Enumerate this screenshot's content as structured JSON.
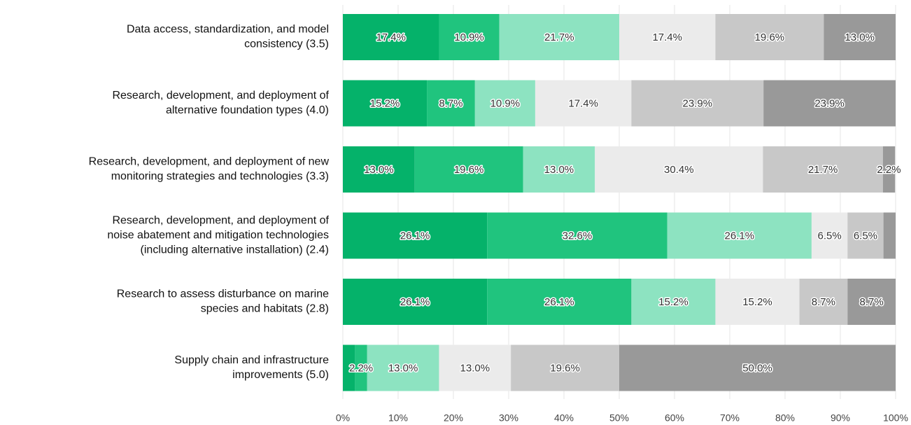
{
  "chart_data": {
    "type": "stacked_barh",
    "categories": [
      [
        "Data access, standardization, and model",
        "consistency (3.5)"
      ],
      [
        "Research, development, and deployment of",
        "alternative foundation types (4.0)"
      ],
      [
        "Research, development, and deployment of new",
        "monitoring strategies and technologies (3.3)"
      ],
      [
        "Research, development, and deployment of",
        "noise abatement and mitigation technologies",
        "(including alternative installation) (2.4)"
      ],
      [
        "Research to assess disturbance on marine",
        "species and habitats (2.8)"
      ],
      [
        "Supply chain and infrastructure",
        "improvements (5.0)"
      ]
    ],
    "series": [
      {
        "color": "#05b26a",
        "values": [
          17.4,
          15.2,
          13.0,
          26.1,
          26.1,
          2.2
        ],
        "value_labels": [
          "17.4%",
          "15.2%",
          "13.0%",
          "26.1%",
          "26.1%",
          null
        ]
      },
      {
        "color": "#20c47e",
        "values": [
          10.9,
          8.7,
          19.6,
          32.6,
          26.1,
          2.2
        ],
        "value_labels": [
          "10.9%",
          "8.7%",
          "19.6%",
          "32.6%",
          "26.1%",
          "2.2%"
        ]
      },
      {
        "color": "#8de3c1",
        "values": [
          21.7,
          10.9,
          13.0,
          26.1,
          15.2,
          13.0
        ],
        "value_labels": [
          "21.7%",
          "10.9%",
          "13.0%",
          "26.1%",
          "15.2%",
          "13.0%"
        ]
      },
      {
        "color": "#ebebeb",
        "values": [
          17.4,
          17.4,
          30.4,
          6.5,
          15.2,
          13.0
        ],
        "value_labels": [
          "17.4%",
          "17.4%",
          "30.4%",
          "6.5%",
          "15.2%",
          "13.0%"
        ]
      },
      {
        "color": "#c8c8c8",
        "values": [
          19.6,
          23.9,
          21.7,
          6.5,
          8.7,
          19.6
        ],
        "value_labels": [
          "19.6%",
          "23.9%",
          "21.7%",
          "6.5%",
          "8.7%",
          "19.6%"
        ]
      },
      {
        "color": "#999999",
        "values": [
          13.0,
          23.9,
          2.2,
          2.2,
          8.7,
          50.0
        ],
        "value_labels": [
          "13.0%",
          "23.9%",
          "2.2%",
          null,
          "8.7%",
          "50.0%"
        ]
      }
    ],
    "xlim": [
      0,
      100
    ],
    "xticks": [
      {
        "value": 0,
        "label": "0%"
      },
      {
        "value": 10,
        "label": "10%"
      },
      {
        "value": 20,
        "label": "20%"
      },
      {
        "value": 30,
        "label": "30%"
      },
      {
        "value": 40,
        "label": "40%"
      },
      {
        "value": 50,
        "label": "50%"
      },
      {
        "value": 60,
        "label": "60%"
      },
      {
        "value": 70,
        "label": "70%"
      },
      {
        "value": 80,
        "label": "80%"
      },
      {
        "value": 90,
        "label": "90%"
      },
      {
        "value": 100,
        "label": "100%"
      }
    ],
    "grid": true
  }
}
